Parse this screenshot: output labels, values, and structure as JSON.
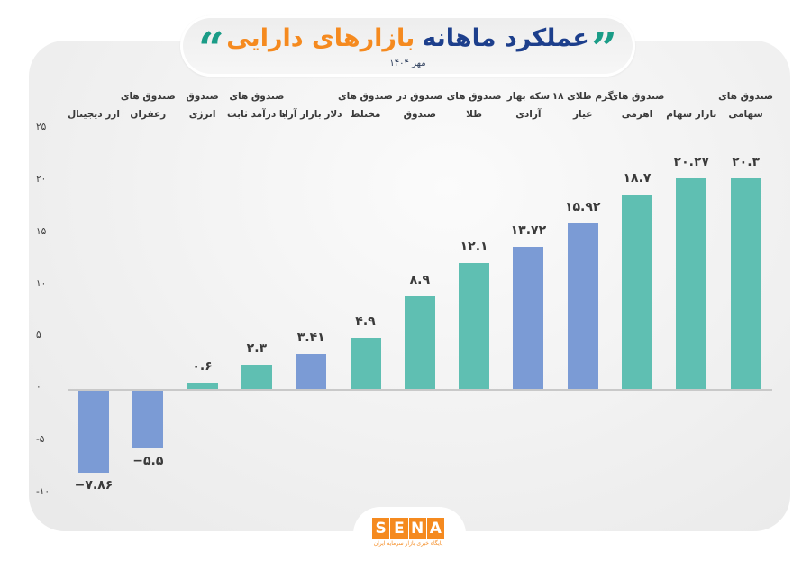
{
  "header": {
    "title_dark": "عملکرد ماهانه",
    "title_orange": "بازارهای دارایی",
    "subtitle": "مهر ۱۴۰۴",
    "quote_left": "“",
    "quote_right": "”"
  },
  "y_ticks": [
    "۲۵",
    "۲۰",
    "۱۵",
    "۱۰",
    "۵",
    "۰",
    "-۵",
    "-۱۰"
  ],
  "categories": [
    {
      "line1": "",
      "line2": "ارز دیجیتال"
    },
    {
      "line1": "صندوق های",
      "line2": "زعفران"
    },
    {
      "line1": "صندوق",
      "line2": "انرژی"
    },
    {
      "line1": "صندوق های",
      "line2": "با درآمد ثابت"
    },
    {
      "line1": "",
      "line2": "دلار بازار آزاد"
    },
    {
      "line1": "صندوق های",
      "line2": "مختلط"
    },
    {
      "line1": "صندوق در",
      "line2": "صندوق"
    },
    {
      "line1": "صندوق های",
      "line2": "طلا"
    },
    {
      "line1": "سکه بهار",
      "line2": "آزادی"
    },
    {
      "line1": "گرم طلای ۱۸",
      "line2": "عیار"
    },
    {
      "line1": "صندوق های",
      "line2": "اهرمی"
    },
    {
      "line1": "",
      "line2": "بازار سهام"
    },
    {
      "line1": "صندوق های",
      "line2": "سهامی"
    }
  ],
  "value_labels": [
    "−۷.۸۶",
    "−۵.۵",
    "۰.۶",
    "۲.۳",
    "۳.۴۱",
    "۴.۹",
    "۸.۹",
    "۱۲.۱",
    "۱۳.۷۲",
    "۱۵.۹۲",
    "۱۸.۷",
    "۲۰.۲۷",
    "۲۰.۳"
  ],
  "logo": {
    "letters": [
      "S",
      "E",
      "N",
      "A"
    ],
    "tagline": "پایگاه خبری بازار سرمایه ایران"
  },
  "colors": {
    "teal": "#5fbfb2",
    "blue": "#7b9bd5",
    "title_dark": "#1d3f8c",
    "title_orange": "#f58a1f",
    "quote": "#1a9c87"
  },
  "chart_data": {
    "type": "bar",
    "title": "عملکرد ماهانه بازارهای دارایی",
    "subtitle": "مهر ۱۴۰۴",
    "categories": [
      "ارز دیجیتال",
      "صندوق های زعفران",
      "صندوق انرژی",
      "صندوق های با درآمد ثابت",
      "دلار بازار آزاد",
      "صندوق های مختلط",
      "صندوق در صندوق",
      "صندوق های طلا",
      "سکه بهار آزادی",
      "گرم طلای ۱۸ عیار",
      "صندوق های اهرمی",
      "بازار سهام",
      "صندوق های سهامی"
    ],
    "values": [
      -7.86,
      -5.5,
      0.6,
      2.3,
      3.41,
      4.9,
      8.9,
      12.1,
      13.72,
      15.92,
      18.7,
      20.27,
      20.3
    ],
    "bar_colors": [
      "blue",
      "blue",
      "teal",
      "teal",
      "blue",
      "teal",
      "teal",
      "teal",
      "blue",
      "blue",
      "teal",
      "teal",
      "teal"
    ],
    "xlabel": "",
    "ylabel": "",
    "ylim": [
      -10,
      25
    ],
    "y_ticks": [
      -10,
      -5,
      0,
      5,
      10,
      15,
      20,
      25
    ],
    "grid": false,
    "legend": "none",
    "category_labels_position": "top"
  }
}
